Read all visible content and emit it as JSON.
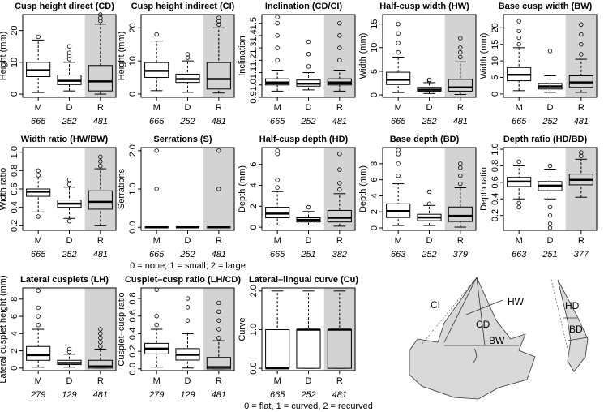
{
  "chart_data": [
    {
      "type": "box",
      "title": "Cusp height direct (CD)",
      "y_label": "Height (mm)",
      "categories": [
        "M",
        "D",
        "R"
      ],
      "n": [
        "665",
        "252",
        "481"
      ],
      "shade": 2,
      "shade_color": "#d3d3d3",
      "ylim": [
        -1,
        25
      ],
      "yticks": [
        0,
        10,
        20
      ],
      "boxes": [
        {
          "whislo": 0.5,
          "q1": 5.5,
          "med": 7.5,
          "q3": 10,
          "whishi": 17,
          "fliers": [
            18
          ]
        },
        {
          "whislo": 1,
          "q1": 3,
          "med": 4.2,
          "q3": 6,
          "whishi": 10,
          "fliers": [
            11,
            12,
            13,
            15
          ]
        },
        {
          "whislo": 0,
          "q1": 1,
          "med": 4,
          "q3": 9,
          "whishi": 22,
          "fliers": [
            23,
            24,
            25
          ]
        }
      ]
    },
    {
      "type": "box",
      "title": "Cusp height indirect (CI)",
      "y_label": "Height (mm)",
      "categories": [
        "M",
        "D",
        "R"
      ],
      "n": [
        "665",
        "252",
        "481"
      ],
      "shade": 2,
      "shade_color": "#d3d3d3",
      "ylim": [
        -1,
        24
      ],
      "yticks": [
        0,
        10,
        20
      ],
      "boxes": [
        {
          "whislo": 1,
          "q1": 5,
          "med": 7,
          "q3": 9.5,
          "whishi": 16,
          "fliers": [
            18
          ]
        },
        {
          "whislo": 0.5,
          "q1": 3.5,
          "med": 4.5,
          "q3": 6,
          "whishi": 10,
          "fliers": [
            11,
            12
          ]
        },
        {
          "whislo": 0.3,
          "q1": 1.5,
          "med": 4.5,
          "q3": 9.5,
          "whishi": 20,
          "fliers": [
            21,
            22,
            23
          ]
        }
      ]
    },
    {
      "type": "box",
      "title": "Inclination (CD/CI)",
      "y_label": "Inclination",
      "categories": [
        "M",
        "D",
        "R"
      ],
      "n": [
        "665",
        "252",
        "481"
      ],
      "shade": 2,
      "shade_color": "#d3d3d3",
      "ylim": [
        0.9,
        1.57
      ],
      "yticks": [
        0.9,
        {
          "value": 1,
          "label": "1.0"
        },
        1.1,
        1.2,
        1.3,
        1.4,
        1.5
      ],
      "boxes": [
        {
          "whislo": 0.95,
          "q1": 1,
          "med": 1.02,
          "q3": 1.05,
          "whishi": 1.12,
          "fliers": [
            1.2,
            1.3,
            1.4,
            1.5,
            1.55
          ]
        },
        {
          "whislo": 0.96,
          "q1": 0.99,
          "med": 1.01,
          "q3": 1.04,
          "whishi": 1.1,
          "fliers": [
            1.15,
            1.25,
            1.35
          ]
        },
        {
          "whislo": 0.95,
          "q1": 1,
          "med": 1.02,
          "q3": 1.05,
          "whishi": 1.12,
          "fliers": [
            1.2,
            1.3,
            1.4,
            1.5
          ]
        }
      ]
    },
    {
      "type": "box",
      "title": "Half-cusp width (HW)",
      "y_label": "Width (mm)",
      "categories": [
        "M",
        "D",
        "R"
      ],
      "n": [
        "665",
        "252",
        "481"
      ],
      "shade": 2,
      "shade_color": "#d3d3d3",
      "ylim": [
        -0.5,
        17
      ],
      "yticks": [
        0,
        5,
        10,
        15
      ],
      "boxes": [
        {
          "whislo": 0.5,
          "q1": 2.2,
          "med": 3.2,
          "q3": 4.8,
          "whishi": 8,
          "fliers": [
            9,
            11,
            13,
            15
          ]
        },
        {
          "whislo": 0.3,
          "q1": 0.8,
          "med": 1.1,
          "q3": 1.6,
          "whishi": 2.6,
          "fliers": [
            3,
            3.2
          ]
        },
        {
          "whislo": 0.1,
          "q1": 0.8,
          "med": 1.6,
          "q3": 3.3,
          "whishi": 7,
          "fliers": [
            8,
            9,
            10,
            12
          ]
        }
      ]
    },
    {
      "type": "box",
      "title": "Base cusp width (BW)",
      "y_label": "Width (mm)",
      "categories": [
        "M",
        "D",
        "R"
      ],
      "n": [
        "665",
        "252",
        "481"
      ],
      "shade": 2,
      "shade_color": "#d3d3d3",
      "ylim": [
        -1,
        24
      ],
      "yticks": [
        0,
        5,
        10,
        15,
        20
      ],
      "boxes": [
        {
          "whislo": 1,
          "q1": 4,
          "med": 5.8,
          "q3": 8,
          "whishi": 14,
          "fliers": [
            15,
            17,
            19,
            22
          ]
        },
        {
          "whislo": 0.5,
          "q1": 1.5,
          "med": 2.3,
          "q3": 3.2,
          "whishi": 5.5,
          "fliers": [
            13
          ]
        },
        {
          "whislo": 0.5,
          "q1": 2,
          "med": 3.5,
          "q3": 5.5,
          "whishi": 10.5,
          "fliers": [
            12,
            15,
            18,
            21
          ]
        }
      ]
    },
    {
      "type": "box",
      "title": "Width ratio (HW/BW)",
      "y_label": "Width ratio",
      "categories": [
        "M",
        "D",
        "R"
      ],
      "n": [
        "665",
        "252",
        "481"
      ],
      "shade": 2,
      "shade_color": "#d3d3d3",
      "ylim": [
        0.15,
        1.05
      ],
      "yticks": [
        0.2,
        0.4,
        0.6,
        0.8,
        {
          "value": 1,
          "label": "1.0"
        }
      ],
      "boxes": [
        {
          "whislo": 0.35,
          "q1": 0.52,
          "med": 0.57,
          "q3": 0.6,
          "whishi": 0.72,
          "fliers": [
            0.3,
            0.75,
            0.8
          ]
        },
        {
          "whislo": 0.28,
          "q1": 0.4,
          "med": 0.44,
          "q3": 0.48,
          "whishi": 0.62,
          "fliers": [
            0.25,
            0.65,
            0.7
          ]
        },
        {
          "whislo": 0.2,
          "q1": 0.38,
          "med": 0.46,
          "q3": 0.58,
          "whishi": 0.82,
          "fliers": [
            0.85,
            0.9,
            0.95
          ]
        }
      ]
    },
    {
      "type": "box",
      "title": "Serrations (S)",
      "y_label": "Serrations",
      "categories": [
        "M",
        "D",
        "R"
      ],
      "n": [
        "665",
        "252",
        "481"
      ],
      "shade": 2,
      "shade_color": "#d3d3d3",
      "note": "0 = none; 1 = small; 2 = large",
      "ylim": [
        -0.08,
        2.08
      ],
      "yticks": [
        {
          "value": 0,
          "label": "0.0"
        },
        {
          "value": 1,
          "label": "1.0"
        },
        {
          "value": 2,
          "label": "2.0"
        }
      ],
      "boxes": [
        {
          "whislo": 0,
          "q1": 0,
          "med": 0,
          "q3": 0,
          "whishi": 0,
          "fliers": [
            1,
            2
          ]
        },
        {
          "whislo": 0,
          "q1": 0,
          "med": 0,
          "q3": 0,
          "whishi": 0,
          "fliers": []
        },
        {
          "whislo": 0,
          "q1": 0,
          "med": 0,
          "q3": 0,
          "whishi": 0,
          "fliers": [
            1,
            2
          ]
        }
      ]
    },
    {
      "type": "box",
      "title": "Half-cusp depth (HD)",
      "y_label": "Depth (mm)",
      "categories": [
        "M",
        "D",
        "R"
      ],
      "n": [
        "665",
        "251",
        "382"
      ],
      "shade": 2,
      "shade_color": "#d3d3d3",
      "ylim": [
        -0.3,
        7.6
      ],
      "yticks": [
        0,
        2,
        4,
        6
      ],
      "boxes": [
        {
          "whislo": 0.2,
          "q1": 0.9,
          "med": 1.3,
          "q3": 1.9,
          "whishi": 3.4,
          "fliers": [
            3.8,
            4.5,
            7,
            7.3
          ]
        },
        {
          "whislo": 0.2,
          "q1": 0.5,
          "med": 0.7,
          "q3": 0.9,
          "whishi": 1.5,
          "fliers": [
            1.9
          ]
        },
        {
          "whislo": 0.1,
          "q1": 0.5,
          "med": 0.9,
          "q3": 1.6,
          "whishi": 3.2,
          "fliers": [
            3.6,
            4.2,
            5.5,
            7
          ]
        }
      ]
    },
    {
      "type": "box",
      "title": "Base depth (BD)",
      "y_label": "Depth (mm)",
      "categories": [
        "M",
        "D",
        "R"
      ],
      "n": [
        "663",
        "252",
        "379"
      ],
      "shade": 2,
      "shade_color": "#d3d3d3",
      "ylim": [
        -0.3,
        10
      ],
      "yticks": [
        0,
        2,
        4,
        6,
        8
      ],
      "boxes": [
        {
          "whislo": 0.3,
          "q1": 1.3,
          "med": 2.1,
          "q3": 3,
          "whishi": 5.5,
          "fliers": [
            6.5,
            8,
            9.2,
            9.7
          ]
        },
        {
          "whislo": 0.3,
          "q1": 0.9,
          "med": 1.3,
          "q3": 1.7,
          "whishi": 2.8,
          "fliers": [
            3,
            4.5
          ]
        },
        {
          "whislo": 0.1,
          "q1": 0.8,
          "med": 1.5,
          "q3": 2.6,
          "whishi": 5,
          "fliers": [
            5.5,
            6.5,
            7.5,
            8
          ]
        }
      ]
    },
    {
      "type": "box",
      "title": "Depth ratio (HD/BD)",
      "y_label": "Depth ratio",
      "categories": [
        "M",
        "D",
        "R"
      ],
      "n": [
        "663",
        "251",
        "377"
      ],
      "shade": 2,
      "shade_color": "#d3d3d3",
      "ylim": [
        0.02,
        1.02
      ],
      "yticks": [
        0.2,
        0.4,
        0.6,
        0.8,
        {
          "value": 1,
          "label": "1.0"
        }
      ],
      "boxes": [
        {
          "whislo": 0.4,
          "q1": 0.55,
          "med": 0.61,
          "q3": 0.66,
          "whishi": 0.8,
          "fliers": [
            0.3,
            0.35,
            0.85
          ]
        },
        {
          "whislo": 0.4,
          "q1": 0.5,
          "med": 0.56,
          "q3": 0.61,
          "whishi": 0.76,
          "fliers": [
            0.05,
            0.1,
            0.2,
            0.3,
            0.8
          ]
        },
        {
          "whislo": 0.42,
          "q1": 0.57,
          "med": 0.63,
          "q3": 0.7,
          "whishi": 0.88,
          "fliers": [
            0.92,
            0.96
          ]
        }
      ]
    },
    {
      "type": "box",
      "title": "Lateral cusplets (LH)",
      "y_label": "Lateral cusplet height (mm)",
      "categories": [
        "M",
        "D",
        "R"
      ],
      "n": [
        "279",
        "129",
        "481"
      ],
      "shade": 2,
      "shade_color": "#d3d3d3",
      "ylim": [
        -0.3,
        9.3
      ],
      "yticks": [
        0,
        2,
        4,
        6,
        8
      ],
      "boxes": [
        {
          "whislo": 0.1,
          "q1": 0.9,
          "med": 1.5,
          "q3": 2.5,
          "whishi": 4.5,
          "fliers": [
            5,
            6,
            7,
            9
          ]
        },
        {
          "whislo": 0.1,
          "q1": 0.4,
          "med": 0.6,
          "q3": 0.9,
          "whishi": 1.6,
          "fliers": [
            1.9,
            2.2
          ]
        },
        {
          "whislo": 0,
          "q1": 0,
          "med": 0.2,
          "q3": 0.9,
          "whishi": 2.2,
          "fliers": [
            2.5,
            3,
            3.5,
            4,
            4.5
          ]
        }
      ]
    },
    {
      "type": "box",
      "title": "Cusplet–cusp ratio (LH/CD)",
      "y_label": "Cusplet–cusp ratio",
      "categories": [
        "M",
        "D",
        "R"
      ],
      "n": [
        "279",
        "129",
        "481"
      ],
      "shade": 2,
      "shade_color": "#d3d3d3",
      "ylim": [
        -0.02,
        0.92
      ],
      "yticks": [
        {
          "value": 0,
          "label": "0.0"
        },
        0.2,
        0.4,
        0.6,
        0.8
      ],
      "boxes": [
        {
          "whislo": 0.02,
          "q1": 0.17,
          "med": 0.23,
          "q3": 0.29,
          "whishi": 0.45,
          "fliers": [
            0.5,
            0.6,
            0.9
          ]
        },
        {
          "whislo": 0.01,
          "q1": 0.1,
          "med": 0.16,
          "q3": 0.23,
          "whishi": 0.4,
          "fliers": [
            0.55,
            0.7,
            0.8
          ]
        },
        {
          "whislo": 0,
          "q1": 0,
          "med": 0.02,
          "q3": 0.13,
          "whishi": 0.32,
          "fliers": [
            0.35,
            0.45,
            0.55,
            0.65,
            0.75
          ]
        }
      ]
    },
    {
      "type": "box",
      "title": "Lateral–lingual curve (Cu)",
      "y_label": "Curve",
      "categories": [
        "M",
        "D",
        "R"
      ],
      "n": [
        "665",
        "252",
        "481"
      ],
      "shade": 2,
      "shade_color": "#d3d3d3",
      "note": "0 = flat, 1 = curved, 2 = recurved",
      "ylim": [
        -0.06,
        2.08
      ],
      "yticks": [
        {
          "value": 0,
          "label": "0.0"
        },
        {
          "value": 1,
          "label": "1.0"
        },
        {
          "value": 2,
          "label": "2.0"
        }
      ],
      "boxes": [
        {
          "whislo": 0,
          "q1": 0,
          "med": 0,
          "q3": 1,
          "whishi": 2,
          "fliers": []
        },
        {
          "whislo": 0,
          "q1": 0,
          "med": 1,
          "q3": 1,
          "whishi": 2,
          "fliers": []
        },
        {
          "whislo": 0,
          "q1": 0,
          "med": 1,
          "q3": 1,
          "whishi": 2,
          "fliers": []
        }
      ]
    }
  ],
  "diagram": {
    "labels": [
      "CI",
      "HW",
      "CD",
      "BW",
      "HD",
      "BD"
    ]
  }
}
